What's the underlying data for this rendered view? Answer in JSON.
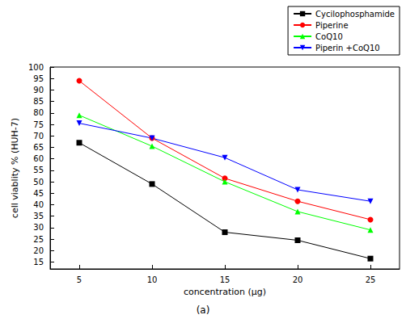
{
  "chart_data": {
    "type": "line",
    "subtitle": "(a)",
    "x_label": "concentration (µg)",
    "y_label": "cell viablity % (HUH-7)",
    "x": [
      5,
      10,
      15,
      20,
      25
    ],
    "xlim": [
      3,
      27
    ],
    "xticks": [
      5,
      10,
      15,
      20,
      25
    ],
    "ylim": [
      12,
      100
    ],
    "yticks": [
      15,
      20,
      25,
      30,
      35,
      40,
      45,
      50,
      55,
      60,
      65,
      70,
      75,
      80,
      85,
      90,
      95,
      100
    ],
    "grid": false,
    "legend": "upper right",
    "series": [
      {
        "name": "Cycilophosphamide",
        "color": "#000000",
        "marker": "square",
        "values": [
          67,
          49,
          28,
          24.5,
          16.5
        ]
      },
      {
        "name": "Piperine",
        "color": "#ff0000",
        "marker": "circle",
        "values": [
          94,
          69,
          51.5,
          41.5,
          33.5
        ]
      },
      {
        "name": "CoQ10",
        "color": "#00ff00",
        "marker": "triangle",
        "values": [
          79,
          65.5,
          50,
          37,
          29
        ]
      },
      {
        "name": "Piperin +CoQ10",
        "color": "#0000ff",
        "marker": "triangle-down",
        "values": [
          75.5,
          69,
          60.5,
          46.5,
          41.5
        ]
      }
    ]
  }
}
